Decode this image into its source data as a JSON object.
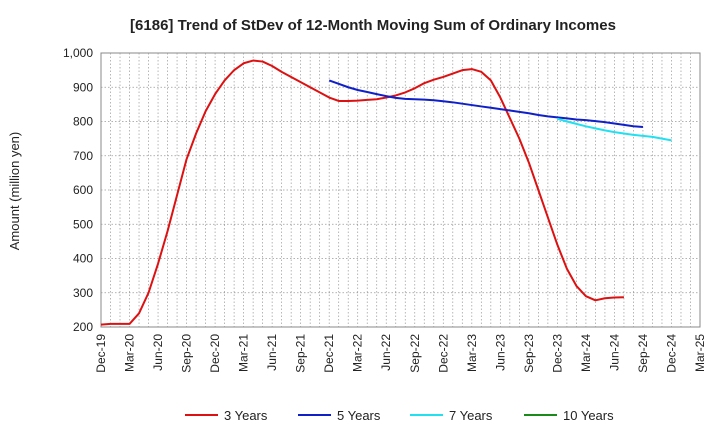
{
  "chart_data": {
    "type": "line",
    "title": "[6186]  Trend of StDev of 12-Month Moving Sum of Ordinary Incomes",
    "ylabel": "Amount (million yen)",
    "xlabel": "",
    "ylim": [
      200,
      1000
    ],
    "y_ticks": [
      200,
      300,
      400,
      500,
      600,
      700,
      800,
      900,
      1000
    ],
    "y_tick_labels": [
      "200",
      "300",
      "400",
      "500",
      "600",
      "700",
      "800",
      "900",
      "1,000"
    ],
    "x_ticks": [
      "Dec-19",
      "Mar-20",
      "Jun-20",
      "Sep-20",
      "Dec-20",
      "Mar-21",
      "Jun-21",
      "Sep-21",
      "Dec-21",
      "Mar-22",
      "Jun-22",
      "Sep-22",
      "Dec-22",
      "Mar-23",
      "Jun-23",
      "Sep-23",
      "Dec-23",
      "Mar-24",
      "Jun-24",
      "Sep-24",
      "Dec-24",
      "Mar-25"
    ],
    "grid": true,
    "legend_position": "bottom",
    "series": [
      {
        "name": "3 Years",
        "color": "#dd1111",
        "start_index": 0,
        "values": [
          207,
          209,
          209,
          209,
          240,
          300,
          385,
          480,
          585,
          690,
          765,
          830,
          880,
          920,
          950,
          970,
          978,
          975,
          962,
          945,
          930,
          915,
          900,
          885,
          870,
          860,
          860,
          861,
          863,
          865,
          870,
          876,
          885,
          897,
          912,
          922,
          930,
          940,
          950,
          953,
          945,
          920,
          870,
          810,
          750,
          680,
          600,
          520,
          440,
          370,
          320,
          290,
          278,
          284,
          286,
          287
        ]
      },
      {
        "name": "5 Years",
        "color": "#1020c8",
        "start_index": 24,
        "values": [
          920,
          910,
          900,
          892,
          886,
          880,
          874,
          869,
          866,
          865,
          864,
          862,
          859,
          856,
          852,
          848,
          844,
          840,
          836,
          832,
          828,
          824,
          819,
          815,
          812,
          809,
          806,
          804,
          801,
          798,
          794,
          790,
          786,
          784
        ]
      },
      {
        "name": "7 Years",
        "color": "#22e0f0",
        "start_index": 48,
        "values": [
          808,
          800,
          793,
          786,
          780,
          774,
          769,
          765,
          761,
          758,
          755,
          750,
          745
        ]
      },
      {
        "name": "10 Years",
        "color": "#1a8a1a",
        "start_index": 0,
        "values": []
      }
    ]
  }
}
